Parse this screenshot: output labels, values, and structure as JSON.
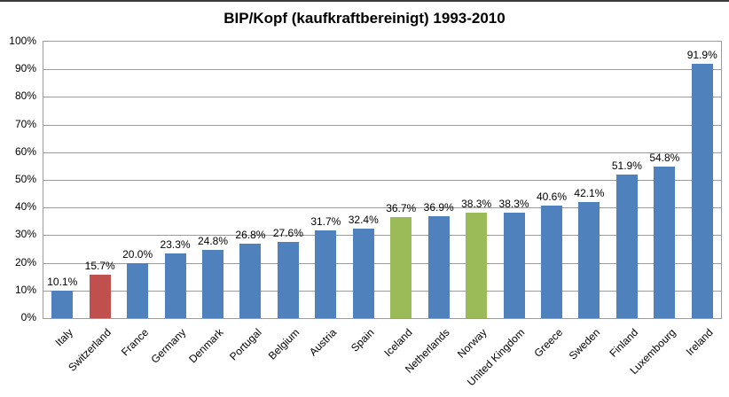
{
  "page": {
    "top_border_color": "#3a3a3a",
    "background": "#ffffff"
  },
  "chart_data": {
    "type": "bar",
    "title": "BIP/Kopf (kaufkraftbereinigt) 1993-2010",
    "categories": [
      "Italy",
      "Switzerland",
      "France",
      "Germany",
      "Denmark",
      "Portugal",
      "Belgium",
      "Austria",
      "Spain",
      "Iceland",
      "Netherlands",
      "Norway",
      "United Kingdom",
      "Greece",
      "Sweden",
      "Finland",
      "Luxembourg",
      "Ireland"
    ],
    "values": [
      10.1,
      15.7,
      20.0,
      23.3,
      24.8,
      26.8,
      27.6,
      31.7,
      32.4,
      36.7,
      36.9,
      38.3,
      38.3,
      40.6,
      42.1,
      51.9,
      54.8,
      91.9
    ],
    "value_labels": [
      "10.1%",
      "15.7%",
      "20.0%",
      "23.3%",
      "24.8%",
      "26.8%",
      "27.6%",
      "31.7%",
      "32.4%",
      "36.7%",
      "36.9%",
      "38.3%",
      "38.3%",
      "40.6%",
      "42.1%",
      "51.9%",
      "54.8%",
      "91.9%"
    ],
    "bar_colors": [
      "blue",
      "red",
      "blue",
      "blue",
      "blue",
      "blue",
      "blue",
      "blue",
      "blue",
      "green",
      "blue",
      "green",
      "blue",
      "blue",
      "blue",
      "blue",
      "blue",
      "blue"
    ],
    "palette": {
      "blue": "#4F81BD",
      "red": "#C0504D",
      "green": "#9BBB59"
    },
    "xlabel": "",
    "ylabel": "",
    "ylim": [
      0,
      100
    ],
    "ytick_step": 10,
    "ytick_labels": [
      "0%",
      "10%",
      "20%",
      "30%",
      "40%",
      "50%",
      "60%",
      "70%",
      "80%",
      "90%",
      "100%"
    ],
    "grid": true,
    "gridline_color": "#9b9b9b",
    "legend_position": "none",
    "x_label_rotation_deg": 45
  }
}
